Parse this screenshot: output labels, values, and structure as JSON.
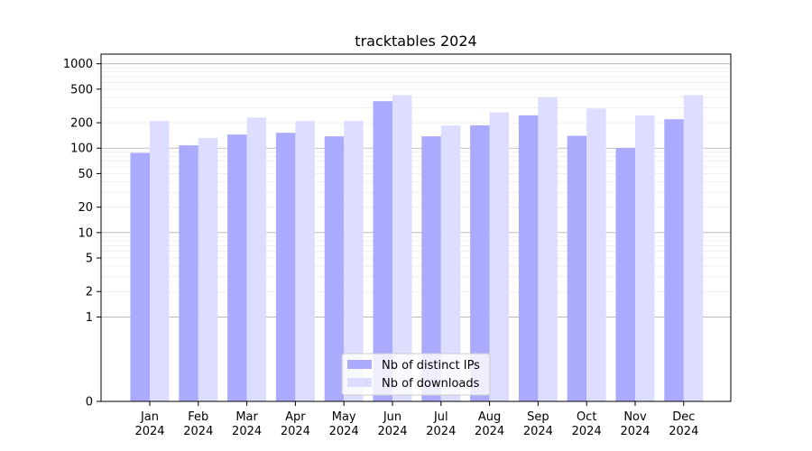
{
  "chart_data": {
    "type": "bar",
    "title": "tracktables 2024",
    "xlabel": "",
    "ylabel": "",
    "yscale": "symlog",
    "ylim": [
      0,
      1300
    ],
    "yticks": [
      0,
      1,
      2,
      5,
      10,
      20,
      50,
      100,
      200,
      500,
      1000
    ],
    "grid": true,
    "legend_position": "lower-center",
    "categories": [
      [
        "Jan",
        "2024"
      ],
      [
        "Feb",
        "2024"
      ],
      [
        "Mar",
        "2024"
      ],
      [
        "Apr",
        "2024"
      ],
      [
        "May",
        "2024"
      ],
      [
        "Jun",
        "2024"
      ],
      [
        "Jul",
        "2024"
      ],
      [
        "Aug",
        "2024"
      ],
      [
        "Sep",
        "2024"
      ],
      [
        "Oct",
        "2024"
      ],
      [
        "Nov",
        "2024"
      ],
      [
        "Dec",
        "2024"
      ]
    ],
    "series": [
      {
        "name": "Nb of distinct IPs",
        "color": "#aaaaff",
        "values": [
          88,
          108,
          145,
          152,
          138,
          360,
          138,
          186,
          245,
          140,
          100,
          220
        ]
      },
      {
        "name": "Nb of downloads",
        "color": "#ddddff",
        "values": [
          210,
          132,
          230,
          210,
          210,
          425,
          185,
          265,
          400,
          295,
          245,
          425
        ]
      }
    ]
  }
}
